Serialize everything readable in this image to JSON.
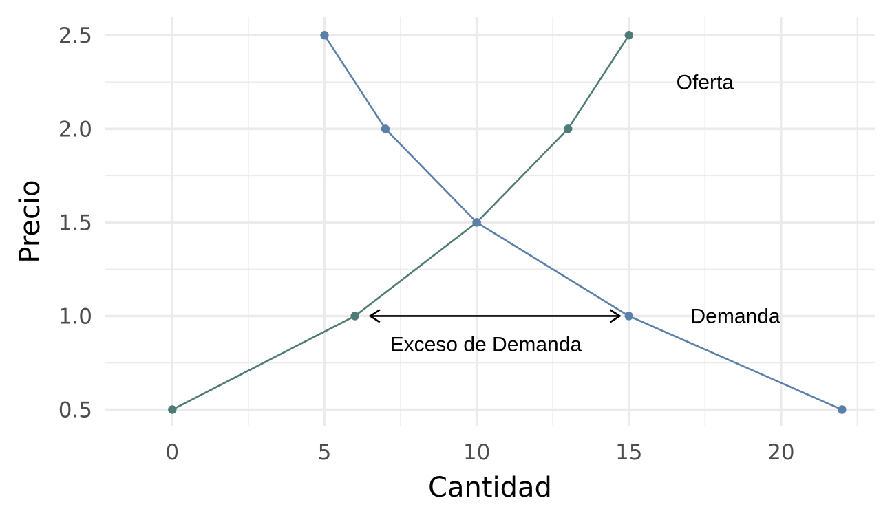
{
  "chart_data": {
    "type": "line",
    "xlabel": "Cantidad",
    "ylabel": "Precio",
    "xlim": [
      -2.2,
      23.1
    ],
    "ylim": [
      0.41,
      2.6
    ],
    "x_ticks": [
      0,
      5,
      10,
      15,
      20
    ],
    "x_tick_labels": [
      "0",
      "5",
      "10",
      "15",
      "20"
    ],
    "y_ticks": [
      0.5,
      1.0,
      1.5,
      2.0,
      2.5
    ],
    "y_tick_labels": [
      "0.5",
      "1.0",
      "1.5",
      "2.0",
      "2.5"
    ],
    "x_minor_ticks": [
      2.5,
      7.5,
      12.5,
      17.5,
      22.5
    ],
    "y_minor_ticks": [
      0.75,
      1.25,
      1.75,
      2.25
    ],
    "grid": true,
    "legend": "none",
    "series": [
      {
        "color": "#4e7b76",
        "x": [
          0,
          6,
          10,
          13,
          15
        ],
        "y": [
          0.5,
          1.0,
          1.5,
          2.0,
          2.5
        ]
      },
      {
        "color": "#5b7fa8",
        "x": [
          5,
          7,
          10,
          15,
          22
        ],
        "y": [
          2.5,
          2.0,
          1.5,
          1.0,
          0.5
        ]
      }
    ],
    "annotations": [
      {
        "text": "Oferta",
        "x": 17.5,
        "y": 2.25
      },
      {
        "text": "Demanda",
        "x": 18.5,
        "y": 1.0
      },
      {
        "text": "Exceso de Demanda",
        "x": 10.3,
        "y": 0.85
      }
    ],
    "arrows": [
      {
        "x_from": 6.5,
        "x_to": 14.7,
        "y": 1.0,
        "heads": "both",
        "color": "#000000"
      }
    ]
  }
}
